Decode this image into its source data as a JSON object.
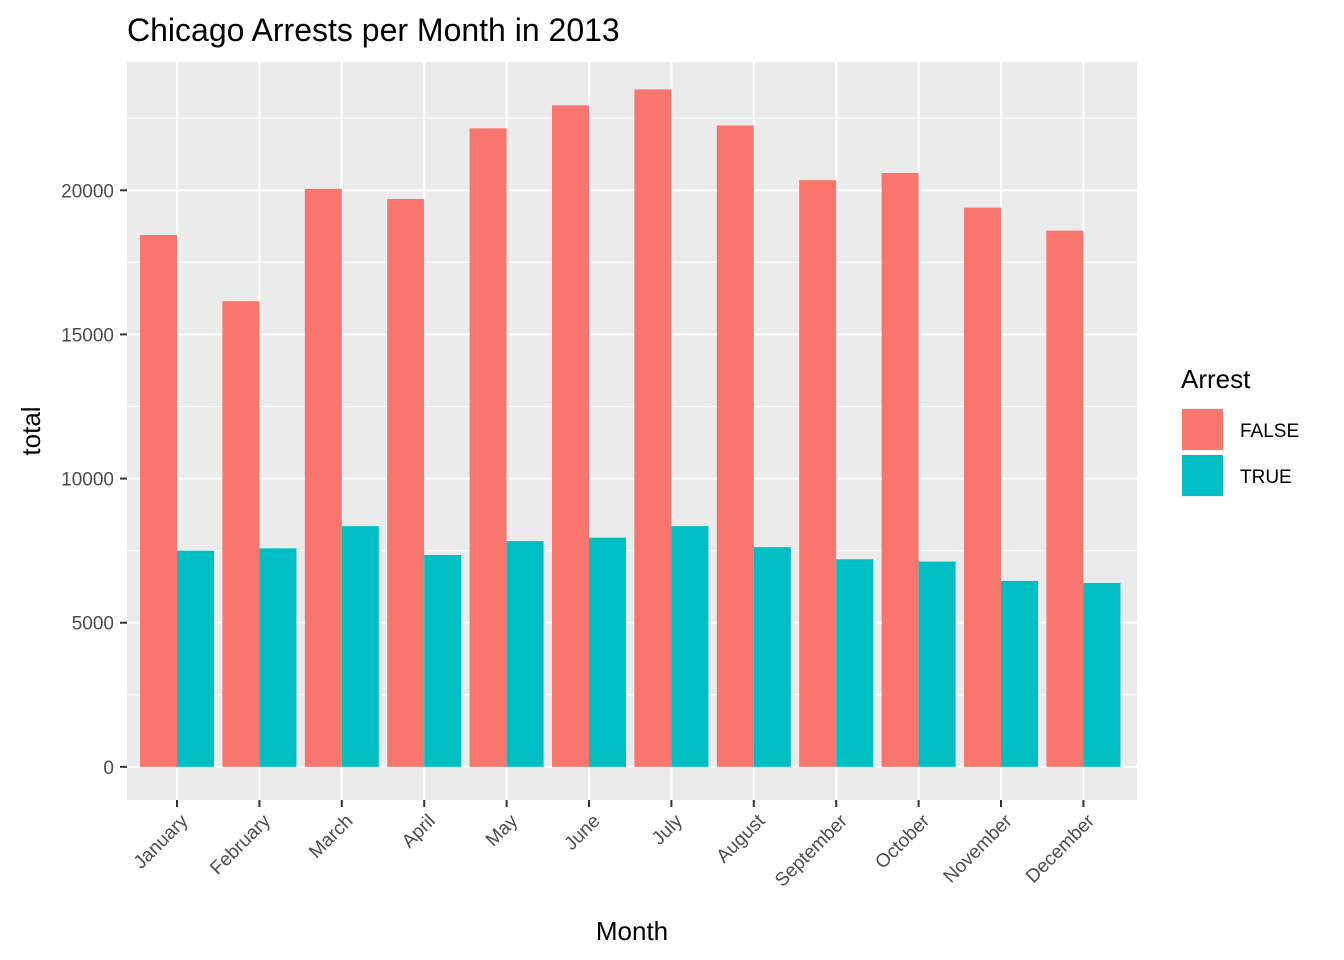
{
  "chart_data": {
    "type": "bar",
    "title": "Chicago Arrests per Month in 2013",
    "xlabel": "Month",
    "ylabel": "total",
    "categories": [
      "January",
      "February",
      "March",
      "April",
      "May",
      "June",
      "July",
      "August",
      "September",
      "October",
      "November",
      "December"
    ],
    "series": [
      {
        "name": "FALSE",
        "color": "#F8766D",
        "values": [
          18450,
          16150,
          20050,
          19700,
          22150,
          22950,
          23500,
          22250,
          20350,
          20600,
          19400,
          18600
        ]
      },
      {
        "name": "TRUE",
        "color": "#00BFC4",
        "values": [
          7500,
          7580,
          8350,
          7350,
          7830,
          7950,
          8350,
          7620,
          7200,
          7120,
          6450,
          6380
        ]
      }
    ],
    "yticks": [
      0,
      5000,
      10000,
      15000,
      20000
    ],
    "ylim": [
      -1150,
      24450
    ],
    "legend": {
      "title": "Arrest",
      "position": "right"
    },
    "grid": true,
    "background": "#EBEBEB"
  }
}
